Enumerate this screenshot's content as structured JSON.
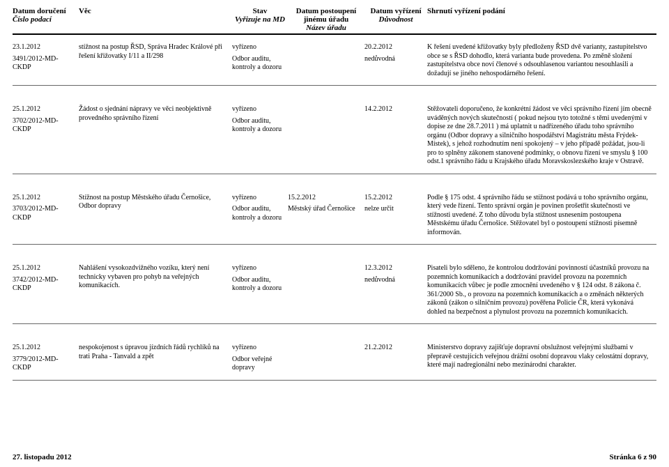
{
  "header": {
    "c1a": "Datum doručení",
    "c1b": "Číslo podací",
    "c2a": "Věc",
    "c3a": "Stav",
    "c3b": "Vyřizuje na MD",
    "c4a": "Datum postoupení jinému úřadu",
    "c4b": "Název úřadu",
    "c5a": "Datum vyřízení",
    "c5b": "Důvodnost",
    "c6a": "Shrnutí vyřízení podání"
  },
  "rows": [
    {
      "date": "23.1.2012",
      "cislo": "3491/2012-MD-CKDP",
      "vec": "stížnost na postup ŘSD, Správa Hradec Králové při řešení křižovatky I/11 a II/298",
      "stav": "vyřízeno",
      "vyrizuje": "Odbor auditu, kontroly a dozoru",
      "post_date": "",
      "post_urad": "",
      "vyr_date": "20.2.2012",
      "duvod": "nedůvodná",
      "shrnuti": "K řešení uvedené křižovatky byly předloženy ŘSD dvě varianty, zastupitelstvo obce se s ŘSD dohodlo, která varianta bude provedena. Po změně složení zastupitelstva obce noví členové s odsouhlasenou variantou nesouhlasili a dožadují se jiného nehospodárného řešení."
    },
    {
      "date": "25.1.2012",
      "cislo": "3702/2012-MD-CKDP",
      "vec": "Žádost o sjednání nápravy ve věci neobjektivně provedného správního řízení",
      "stav": "vyřízeno",
      "vyrizuje": "Odbor auditu, kontroly a dozoru",
      "post_date": "",
      "post_urad": "",
      "vyr_date": "14.2.2012",
      "duvod": "",
      "shrnuti": "Stěžovateli doporučeno, že konkrétní žádost ve věci správního řízení jím obecně uváděných nových skutečností ( pokud nejsou tyto totožné s těmi uvedenými v dopise ze dne 28.7.2011 ) má uplatnit u nadřízeného úřadu toho správního orgánu (Odbor dopravy a silničního hospodářství Magistrátu města Frýdek-Místek), s jehož rozhodnutím není spokojený – v jeho případě požádat, jsou-li pro to splněny zákonem stanovené podmínky, o obnovu řízení ve smyslu § 100 odst.1 správního řádu u Krajského úřadu Moravskoslezského kraje v Ostravě."
    },
    {
      "date": "25.1.2012",
      "cislo": "3703/2012-MD-CKDP",
      "vec": "Stížnost na postup Městského úřadu Černošice, Odbor dopravy",
      "stav": "vyřízeno",
      "vyrizuje": "Odbor auditu, kontroly a dozoru",
      "post_date": "15.2.2012",
      "post_urad": "Městský úřad Černošice",
      "vyr_date": "15.2.2012",
      "duvod": "nelze určit",
      "shrnuti": "Podle § 175 odst. 4 správního řádu se stížnost podává u toho správního orgánu, který vede řízení. Tento správní orgán je povinen prošetřit skutečnosti ve stížnosti uvedené. Z toho důvodu byla stížnost usnesením postoupena Městskému úřadu Černošice. Stěžovatel byl o postoupení stížnosti písemně informován."
    },
    {
      "date": "25.1.2012",
      "cislo": "3742/2012-MD-CKDP",
      "vec": "Nahlášení vysokozdvižného vozíku, který není technicky vybaven pro pohyb na veřejných komunikacích.",
      "stav": "vyřízeno",
      "vyrizuje": "Odbor auditu, kontroly a dozoru",
      "post_date": "",
      "post_urad": "",
      "vyr_date": "12.3.2012",
      "duvod": "nedůvodná",
      "shrnuti": "Pisateli bylo sděleno, že kontrolou dodržování povinností účastníků provozu na pozemních komunikacích a dodržování pravidel provozu na pozemních komunikacích vůbec je podle zmocnění uvedeného v § 124 odst. 8 zákona č. 361/2000 Sb., o provozu na pozemních komunikacích a o změnách některých zákonů (zákon o silničním provozu) pověřena Policie ČR, která vykonává dohled na bezpečnost a plynulost provozu na pozemních komunikacích."
    },
    {
      "date": "25.1.2012",
      "cislo": "3779/2012-MD-CKDP",
      "vec": "nespokojenost s úpravou jízdních řádů rychlíků na trati Praha - Tanvald a zpět",
      "stav": "vyřízeno",
      "vyrizuje": "Odbor veřejné dopravy",
      "post_date": "",
      "post_urad": "",
      "vyr_date": "21.2.2012",
      "duvod": "",
      "shrnuti": "Ministerstvo dopravy zajišťuje dopravní obslužnost veřejnými službami v přepravě cestujících veřejnou drážní osobní dopravou vlaky celostátní dopravy, které mají nadregionální nebo mezinárodní charakter."
    }
  ],
  "footer": {
    "left": "27. listopadu 2012",
    "right": "Stránka 6 z 90"
  }
}
